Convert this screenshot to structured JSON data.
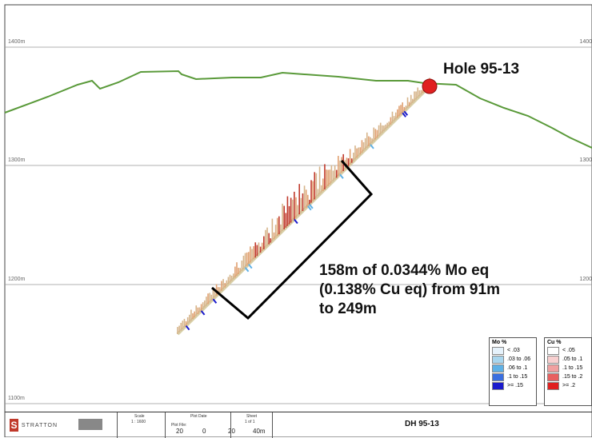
{
  "elevations": {
    "e1400": "1400m",
    "e1300": "1300m",
    "e1200": "1200m",
    "e1100": "1100m",
    "r1400": "1400",
    "r1300": "1300",
    "r1200": "1200"
  },
  "hole_label": "Hole 95-13",
  "annotation": {
    "line1": "158m of 0.0344% Mo eq",
    "line2": "(0.138% Cu eq) from 91m",
    "line3": "to 249m"
  },
  "colors": {
    "topography": "#5a9a3a",
    "collar": "#e02020",
    "trace": "#d8cfa8",
    "cu_high": "#c0392b",
    "mo_high": "#1a1acc"
  },
  "legend_mo": {
    "title": "Mo %",
    "items": [
      {
        "label": "< .03",
        "color": "#e6f2fb"
      },
      {
        "label": ".03 to .06",
        "color": "#a9d6ee"
      },
      {
        "label": ".06 to .1",
        "color": "#5fb1e6"
      },
      {
        "label": ".1 to .15",
        "color": "#3a6fe0"
      },
      {
        "label": ">= .15",
        "color": "#1a1acc"
      }
    ]
  },
  "legend_cu": {
    "title": "Cu %",
    "items": [
      {
        "label": "< .05",
        "color": "#ffffff"
      },
      {
        "label": ".05 to .1",
        "color": "#f8d0d0"
      },
      {
        "label": ".1 to .15",
        "color": "#f0a0a0"
      },
      {
        "label": ".15 to .2",
        "color": "#e86060"
      },
      {
        "label": ">= .2",
        "color": "#e02020"
      }
    ]
  },
  "title_block": {
    "logo_text": "STRATTON",
    "scale_label": "Scale",
    "scale_value": "1 : 1600",
    "plot_date_label": "Plot Date",
    "plot_file_label": "Plot File:",
    "sheet_label": "Sheet",
    "sheet_value": "1 of 1",
    "bar_20a": "20",
    "bar_0": "0",
    "bar_20b": "20",
    "bar_40": "40m",
    "drawing_title": "DH 95-13"
  }
}
